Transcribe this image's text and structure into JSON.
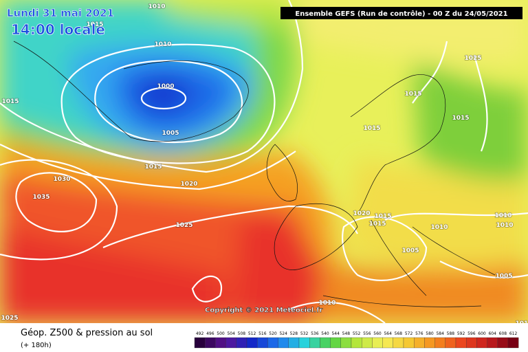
{
  "header": {
    "date": "Lundi 31 mai 2021",
    "time": "14:00 locale",
    "run": "Ensemble GEFS  (Run de contrôle)  -  00 Z du 24/05/2021"
  },
  "isobar_labels": [
    "1010",
    "1015",
    "1010",
    "1000",
    "1005",
    "1015",
    "1015",
    "1020",
    "1030",
    "1035",
    "1025",
    "1025",
    "1015",
    "1015",
    "1015",
    "1020",
    "1015",
    "1015",
    "1010",
    "1010",
    "1010",
    "1005",
    "1005",
    "1010",
    "1025",
    "1010"
  ],
  "copyright": "Copyright © 2021 Meteociel.fr",
  "footer": {
    "title": "Géop. Z500 & pression au sol",
    "lead": "(+ 180h)"
  },
  "scale": [
    492,
    496,
    500,
    504,
    508,
    512,
    516,
    520,
    524,
    528,
    532,
    536,
    540,
    544,
    548,
    552,
    556,
    560,
    564,
    568,
    572,
    576,
    580,
    584,
    588,
    592,
    596,
    600,
    604,
    608,
    612
  ]
}
